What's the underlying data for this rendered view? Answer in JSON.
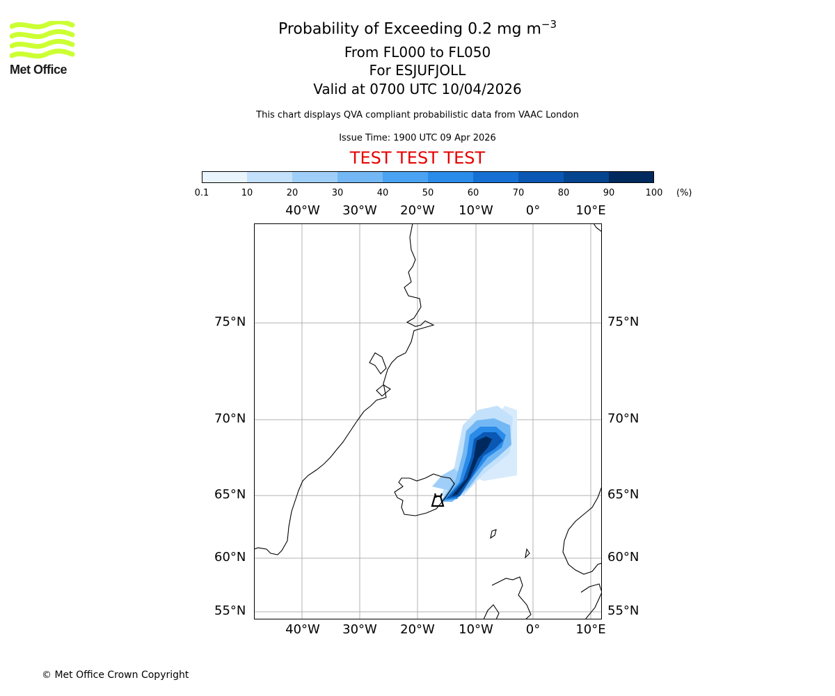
{
  "header": {
    "title_main": "Probability of Exceeding 0.2 mg m",
    "title_sup": "−3",
    "line2": "From FL000 to FL050",
    "line3": "For ESJUFJOLL",
    "line4": "Valid at 0700 UTC 10/04/2026",
    "description": "This chart displays QVA compliant probabilistic data from VAAC London",
    "issue_time": "Issue Time: 1900 UTC 09 Apr 2026",
    "test_banner": "TEST TEST TEST"
  },
  "logo": {
    "text": "Met Office",
    "color": "#ccff33"
  },
  "colorbar": {
    "ticks": [
      "0.1",
      "10",
      "20",
      "30",
      "40",
      "50",
      "60",
      "70",
      "80",
      "90",
      "100"
    ],
    "unit": "(%)",
    "colors": [
      "#eaf4fd",
      "#c4e1fb",
      "#9fcff8",
      "#73b8f5",
      "#4aa3f2",
      "#2a8be8",
      "#1670d3",
      "#0a58b3",
      "#05448f",
      "#002a5e"
    ]
  },
  "map": {
    "lon_labels": [
      "40°W",
      "30°W",
      "20°W",
      "10°W",
      "0°",
      "10°E"
    ],
    "lat_labels": [
      "75°N",
      "70°N",
      "65°N",
      "60°N",
      "55°N"
    ],
    "volcano_marker": "Esjufjoll volcano symbol"
  },
  "footer": {
    "copyright": "© Met Office Crown Copyright"
  }
}
